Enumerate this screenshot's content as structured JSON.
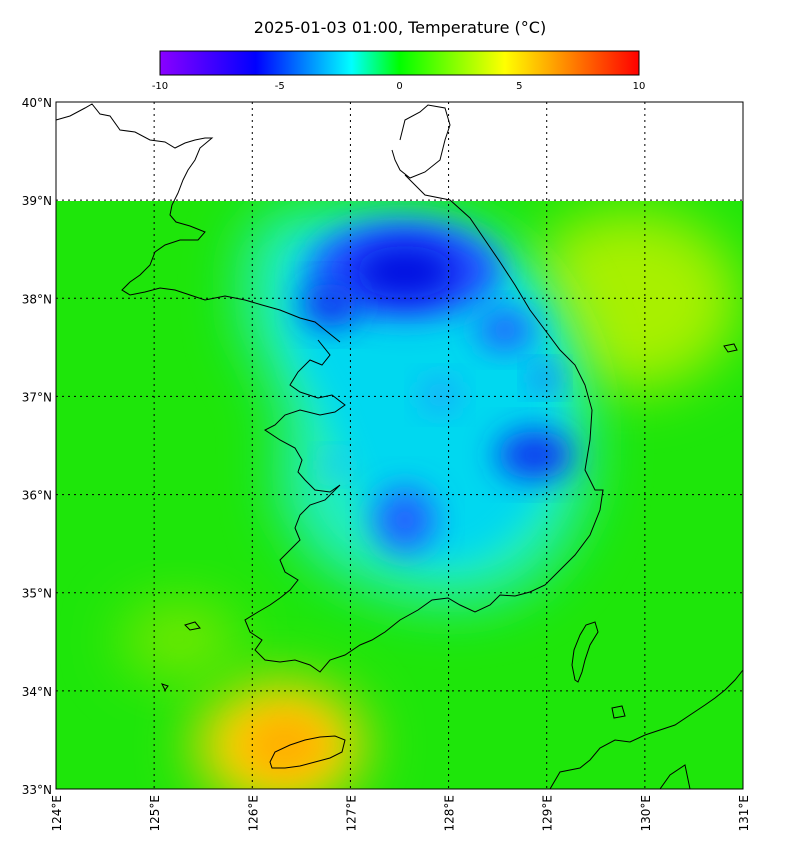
{
  "title": "2025-01-03 01:00, Temperature (°C)",
  "colorbar": {
    "ticks": [
      "-10",
      "-5",
      "0",
      "5",
      "10"
    ],
    "min": -10,
    "max": 10,
    "stops": [
      "#8a00ff",
      "#0000ff",
      "#00ffff",
      "#00ff00",
      "#ffff00",
      "#ff8800",
      "#ff0000"
    ]
  },
  "map": {
    "lon_labels": [
      "124°E",
      "125°E",
      "126°E",
      "127°E",
      "128°E",
      "129°E",
      "130°E",
      "131°E"
    ],
    "lat_labels": [
      "40°N",
      "39°N",
      "38°N",
      "37°N",
      "36°N",
      "35°N",
      "34°N",
      "33°N"
    ],
    "lon_range": [
      124,
      131
    ],
    "lat_range": [
      33,
      40
    ],
    "data_extent_lat_max": 39,
    "grid": "dotted"
  },
  "field": {
    "background_value": 0,
    "cold_spots": [
      {
        "lon": 127.5,
        "lat": 38.2,
        "value": -8
      },
      {
        "lon": 126.8,
        "lat": 37.9,
        "value": -7
      },
      {
        "lon": 128.7,
        "lat": 37.6,
        "value": -6
      },
      {
        "lon": 129.0,
        "lat": 36.4,
        "value": -7
      },
      {
        "lon": 127.6,
        "lat": 35.7,
        "value": -6
      },
      {
        "lon": 127.6,
        "lat": 36.8,
        "value": -3
      }
    ],
    "warm_spots": [
      {
        "lon": 126.4,
        "lat": 33.4,
        "value": 6
      },
      {
        "lon": 129.7,
        "lat": 37.9,
        "value": 2
      }
    ]
  }
}
